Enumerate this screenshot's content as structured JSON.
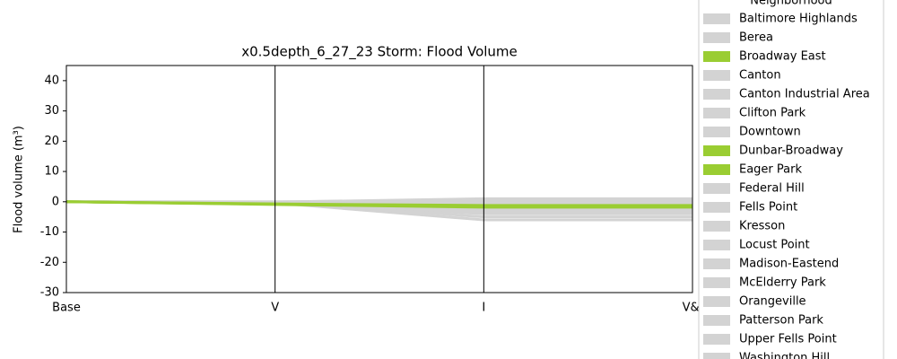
{
  "chart_data": {
    "type": "line",
    "title": "x0.5depth_6_27_23 Storm: Flood Volume",
    "y_label": "Flood volume (m³)",
    "legend_title": "Neighborhood",
    "categories": [
      "Base",
      "V",
      "I",
      "V&I"
    ],
    "ylim": [
      -30,
      45
    ],
    "yticks": [
      -30,
      -20,
      -10,
      0,
      10,
      20,
      30,
      40
    ],
    "series": [
      {
        "name": "Baltimore Highlands",
        "color": "#d3d3d3",
        "values": [
          0,
          -0.3,
          -1,
          -1
        ]
      },
      {
        "name": "Berea",
        "color": "#d3d3d3",
        "values": [
          0,
          -0.5,
          -2,
          -2
        ]
      },
      {
        "name": "Broadway East",
        "color": "#9acd32",
        "values": [
          0,
          -0.8,
          -1.5,
          -1.5
        ]
      },
      {
        "name": "Canton",
        "color": "#d3d3d3",
        "values": [
          0,
          -0.2,
          -0.5,
          -0.5
        ]
      },
      {
        "name": "Canton Industrial Area",
        "color": "#d3d3d3",
        "values": [
          0,
          -0.1,
          1,
          1
        ]
      },
      {
        "name": "Clifton Park",
        "color": "#d3d3d3",
        "values": [
          0,
          -0.6,
          -3,
          -3
        ]
      },
      {
        "name": "Downtown",
        "color": "#d3d3d3",
        "values": [
          0,
          -0.4,
          -6,
          -6
        ]
      },
      {
        "name": "Dunbar-Broadway",
        "color": "#9acd32",
        "values": [
          0,
          -0.7,
          -1.2,
          -1.2
        ]
      },
      {
        "name": "Eager Park",
        "color": "#9acd32",
        "values": [
          0,
          -0.9,
          -1.8,
          -1.8
        ]
      },
      {
        "name": "Federal Hill",
        "color": "#d3d3d3",
        "values": [
          0,
          -0.2,
          -0.8,
          -0.8
        ]
      },
      {
        "name": "Fells Point",
        "color": "#d3d3d3",
        "values": [
          0,
          -0.3,
          -4,
          -4
        ]
      },
      {
        "name": "Kresson",
        "color": "#d3d3d3",
        "values": [
          0,
          0,
          0.5,
          0.5
        ]
      },
      {
        "name": "Locust Point",
        "color": "#d3d3d3",
        "values": [
          0,
          -0.1,
          -0.3,
          -0.3
        ]
      },
      {
        "name": "Madison-Eastend",
        "color": "#d3d3d3",
        "values": [
          0,
          -0.5,
          -2.5,
          -2.5
        ]
      },
      {
        "name": "McElderry Park",
        "color": "#d3d3d3",
        "values": [
          0,
          -0.6,
          -1,
          -1
        ]
      },
      {
        "name": "Orangeville",
        "color": "#d3d3d3",
        "values": [
          0,
          -0.2,
          -5,
          -5
        ]
      },
      {
        "name": "Patterson Park",
        "color": "#d3d3d3",
        "values": [
          0,
          -0.4,
          -1.5,
          -1.5
        ]
      },
      {
        "name": "Upper Fells Point",
        "color": "#d3d3d3",
        "values": [
          0,
          -0.3,
          -3.5,
          -3.5
        ]
      },
      {
        "name": "Washington Hill",
        "color": "#d3d3d3",
        "values": [
          0,
          -0.5,
          -2,
          -2
        ]
      }
    ]
  }
}
